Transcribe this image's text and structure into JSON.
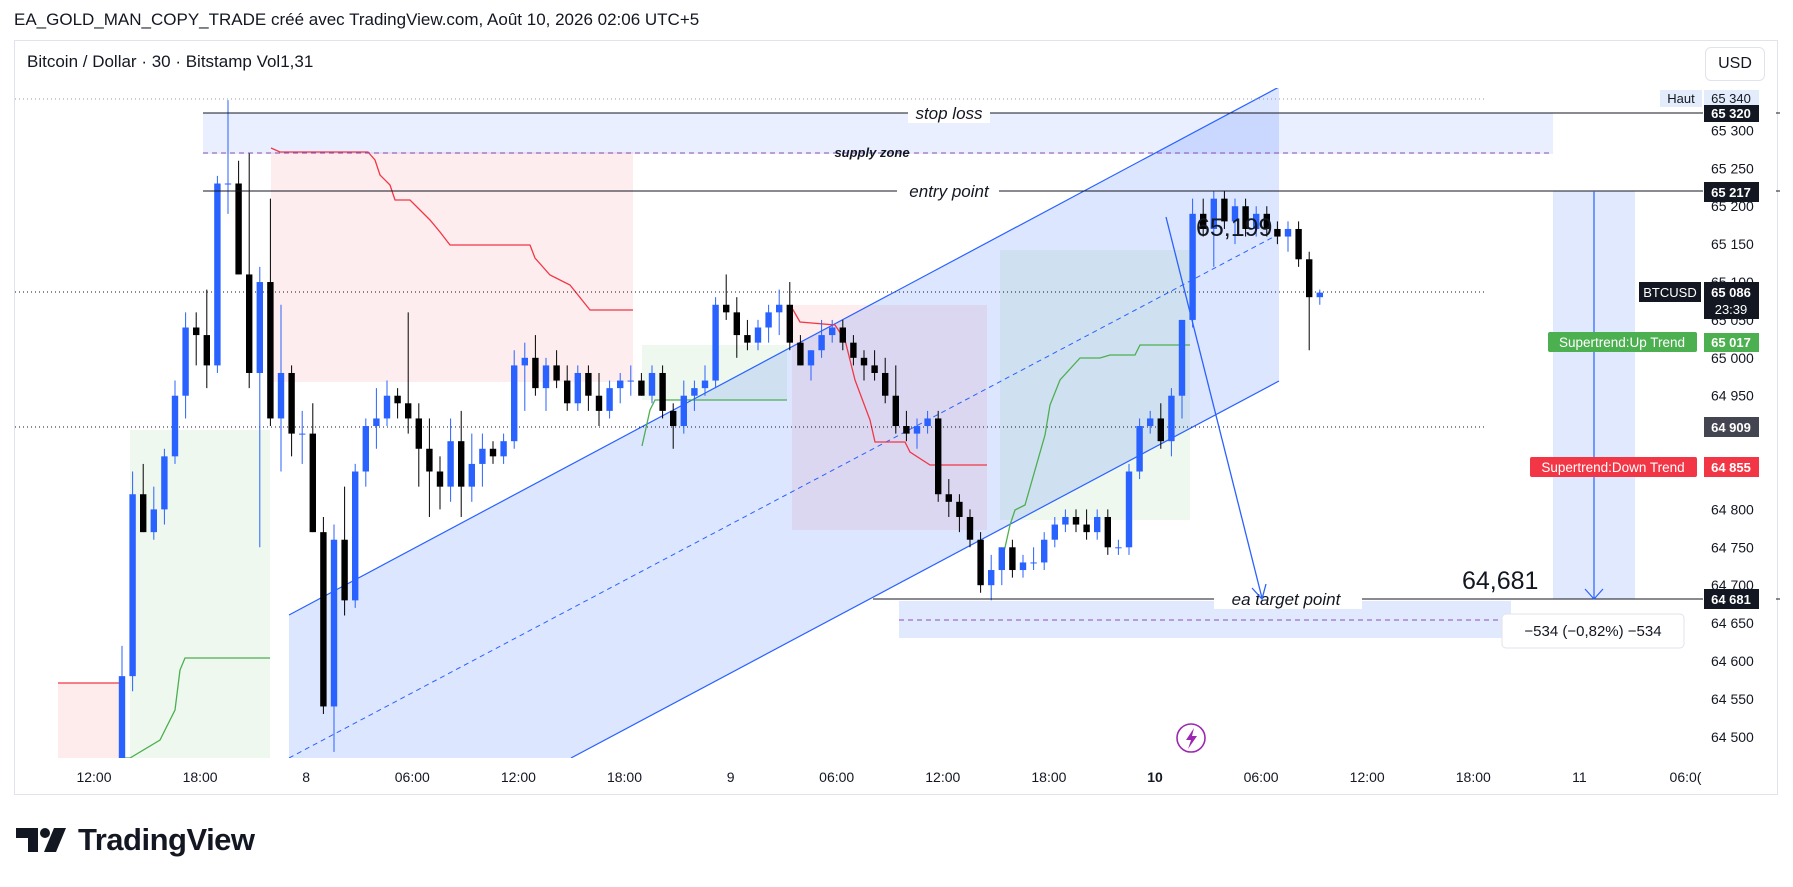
{
  "header": {
    "snapshot_title": "EA_GOLD_MAN_COPY_TRADE créé avec TradingView.com, Août 10, 2026 02:06 UTC+5"
  },
  "chart_header": {
    "symbol_info": "Bitcoin / Dollar · 30 · Bitstamp  Vol1,31",
    "currency_button": "USD"
  },
  "brand": {
    "logo_text": "TradingView",
    "logo_icon": "tradingview-logo-icon"
  },
  "chart_data": {
    "type": "candlestick",
    "timeframe_minutes": 30,
    "x_tick_labels": [
      "12:00",
      "18:00",
      "8",
      "06:00",
      "12:00",
      "18:00",
      "9",
      "06:00",
      "12:00",
      "18:00",
      "10",
      "06:00",
      "12:00",
      "18:00",
      "11",
      "06:0("
    ],
    "y_tick_labels": [
      "65 300",
      "65 250",
      "65 200",
      "65 150",
      "65 100",
      "65 050",
      "65 000",
      "64 950",
      "64 800",
      "64 750",
      "64 700",
      "64 650",
      "64 600",
      "64 550",
      "64 500"
    ],
    "ylim": [
      64472,
      65356
    ],
    "candles": [
      {
        "o": 64470,
        "h": 64620,
        "l": 64430,
        "c": 64580
      },
      {
        "o": 64580,
        "h": 64850,
        "l": 64560,
        "c": 64820
      },
      {
        "o": 64820,
        "h": 64860,
        "l": 64770,
        "c": 64770
      },
      {
        "o": 64770,
        "h": 64830,
        "l": 64760,
        "c": 64800
      },
      {
        "o": 64800,
        "h": 64880,
        "l": 64780,
        "c": 64870
      },
      {
        "o": 64870,
        "h": 64970,
        "l": 64860,
        "c": 64950
      },
      {
        "o": 64950,
        "h": 65060,
        "l": 64920,
        "c": 65040
      },
      {
        "o": 65040,
        "h": 65060,
        "l": 64990,
        "c": 65030
      },
      {
        "o": 65030,
        "h": 65090,
        "l": 64960,
        "c": 64990
      },
      {
        "o": 64990,
        "h": 65240,
        "l": 64980,
        "c": 65230
      },
      {
        "o": 65230,
        "h": 65340,
        "l": 65190,
        "c": 65230
      },
      {
        "o": 65230,
        "h": 65260,
        "l": 65110,
        "c": 65110
      },
      {
        "o": 65110,
        "h": 65270,
        "l": 64960,
        "c": 64980
      },
      {
        "o": 64980,
        "h": 65120,
        "l": 64750,
        "c": 65100
      },
      {
        "o": 65100,
        "h": 65210,
        "l": 64910,
        "c": 64920
      },
      {
        "o": 64920,
        "h": 65070,
        "l": 64850,
        "c": 64980
      },
      {
        "o": 64980,
        "h": 64990,
        "l": 64870,
        "c": 64900
      },
      {
        "o": 64900,
        "h": 64930,
        "l": 64860,
        "c": 64900
      },
      {
        "o": 64900,
        "h": 64940,
        "l": 64770,
        "c": 64770
      },
      {
        "o": 64770,
        "h": 64790,
        "l": 64530,
        "c": 64540
      },
      {
        "o": 64540,
        "h": 64780,
        "l": 64480,
        "c": 64760
      },
      {
        "o": 64760,
        "h": 64830,
        "l": 64660,
        "c": 64680
      },
      {
        "o": 64680,
        "h": 64860,
        "l": 64670,
        "c": 64850
      },
      {
        "o": 64850,
        "h": 64920,
        "l": 64830,
        "c": 64910
      },
      {
        "o": 64910,
        "h": 64960,
        "l": 64880,
        "c": 64920
      },
      {
        "o": 64920,
        "h": 64970,
        "l": 64910,
        "c": 64950
      },
      {
        "o": 64950,
        "h": 64960,
        "l": 64920,
        "c": 64940
      },
      {
        "o": 64940,
        "h": 65060,
        "l": 64900,
        "c": 64920
      },
      {
        "o": 64920,
        "h": 64940,
        "l": 64830,
        "c": 64880
      },
      {
        "o": 64880,
        "h": 64920,
        "l": 64790,
        "c": 64850
      },
      {
        "o": 64850,
        "h": 64870,
        "l": 64800,
        "c": 64830
      },
      {
        "o": 64830,
        "h": 64920,
        "l": 64810,
        "c": 64890
      },
      {
        "o": 64890,
        "h": 64930,
        "l": 64790,
        "c": 64830
      },
      {
        "o": 64830,
        "h": 64900,
        "l": 64810,
        "c": 64860
      },
      {
        "o": 64860,
        "h": 64900,
        "l": 64830,
        "c": 64880
      },
      {
        "o": 64880,
        "h": 64890,
        "l": 64860,
        "c": 64870
      },
      {
        "o": 64870,
        "h": 64900,
        "l": 64860,
        "c": 64890
      },
      {
        "o": 64890,
        "h": 65010,
        "l": 64880,
        "c": 64990
      },
      {
        "o": 64990,
        "h": 65020,
        "l": 64930,
        "c": 65000
      },
      {
        "o": 65000,
        "h": 65030,
        "l": 64950,
        "c": 64960
      },
      {
        "o": 64960,
        "h": 65000,
        "l": 64930,
        "c": 64990
      },
      {
        "o": 64990,
        "h": 65010,
        "l": 64960,
        "c": 64970
      },
      {
        "o": 64970,
        "h": 64990,
        "l": 64930,
        "c": 64940
      },
      {
        "o": 64940,
        "h": 64990,
        "l": 64930,
        "c": 64980
      },
      {
        "o": 64980,
        "h": 64990,
        "l": 64930,
        "c": 64950
      },
      {
        "o": 64950,
        "h": 64980,
        "l": 64910,
        "c": 64930
      },
      {
        "o": 64930,
        "h": 64970,
        "l": 64920,
        "c": 64960
      },
      {
        "o": 64960,
        "h": 64980,
        "l": 64940,
        "c": 64970
      },
      {
        "o": 64970,
        "h": 64990,
        "l": 64950,
        "c": 64970
      },
      {
        "o": 64970,
        "h": 64980,
        "l": 64950,
        "c": 64950
      },
      {
        "o": 64950,
        "h": 64990,
        "l": 64940,
        "c": 64980
      },
      {
        "o": 64980,
        "h": 64990,
        "l": 64920,
        "c": 64930
      },
      {
        "o": 64930,
        "h": 64940,
        "l": 64880,
        "c": 64910
      },
      {
        "o": 64910,
        "h": 64970,
        "l": 64900,
        "c": 64950
      },
      {
        "o": 64950,
        "h": 64970,
        "l": 64930,
        "c": 64960
      },
      {
        "o": 64960,
        "h": 64990,
        "l": 64950,
        "c": 64970
      },
      {
        "o": 64970,
        "h": 65080,
        "l": 64960,
        "c": 65070
      },
      {
        "o": 65070,
        "h": 65110,
        "l": 65050,
        "c": 65060
      },
      {
        "o": 65060,
        "h": 65080,
        "l": 65000,
        "c": 65030
      },
      {
        "o": 65030,
        "h": 65050,
        "l": 65010,
        "c": 65020
      },
      {
        "o": 65020,
        "h": 65050,
        "l": 65010,
        "c": 65040
      },
      {
        "o": 65040,
        "h": 65070,
        "l": 65020,
        "c": 65060
      },
      {
        "o": 65060,
        "h": 65090,
        "l": 65030,
        "c": 65070
      },
      {
        "o": 65070,
        "h": 65100,
        "l": 65010,
        "c": 65020
      },
      {
        "o": 65020,
        "h": 65030,
        "l": 64990,
        "c": 64990
      },
      {
        "o": 64990,
        "h": 65010,
        "l": 64970,
        "c": 65010
      },
      {
        "o": 65010,
        "h": 65050,
        "l": 65000,
        "c": 65030
      },
      {
        "o": 65030,
        "h": 65050,
        "l": 65020,
        "c": 65040
      },
      {
        "o": 65040,
        "h": 65050,
        "l": 65010,
        "c": 65020
      },
      {
        "o": 65020,
        "h": 65030,
        "l": 64990,
        "c": 65000
      },
      {
        "o": 65000,
        "h": 65010,
        "l": 64970,
        "c": 64990
      },
      {
        "o": 64990,
        "h": 65010,
        "l": 64970,
        "c": 64980
      },
      {
        "o": 64980,
        "h": 65000,
        "l": 64940,
        "c": 64950
      },
      {
        "o": 64950,
        "h": 64990,
        "l": 64900,
        "c": 64910
      },
      {
        "o": 64910,
        "h": 64930,
        "l": 64890,
        "c": 64900
      },
      {
        "o": 64900,
        "h": 64920,
        "l": 64880,
        "c": 64910
      },
      {
        "o": 64910,
        "h": 64930,
        "l": 64900,
        "c": 64920
      },
      {
        "o": 64920,
        "h": 64930,
        "l": 64810,
        "c": 64820
      },
      {
        "o": 64820,
        "h": 64840,
        "l": 64790,
        "c": 64810
      },
      {
        "o": 64810,
        "h": 64820,
        "l": 64770,
        "c": 64790
      },
      {
        "o": 64790,
        "h": 64800,
        "l": 64750,
        "c": 64760
      },
      {
        "o": 64760,
        "h": 64770,
        "l": 64690,
        "c": 64700
      },
      {
        "o": 64700,
        "h": 64740,
        "l": 64680,
        "c": 64720
      },
      {
        "o": 64720,
        "h": 64750,
        "l": 64700,
        "c": 64750
      },
      {
        "o": 64750,
        "h": 64760,
        "l": 64710,
        "c": 64720
      },
      {
        "o": 64720,
        "h": 64740,
        "l": 64710,
        "c": 64730
      },
      {
        "o": 64730,
        "h": 64750,
        "l": 64720,
        "c": 64730
      },
      {
        "o": 64730,
        "h": 64770,
        "l": 64720,
        "c": 64760
      },
      {
        "o": 64760,
        "h": 64790,
        "l": 64750,
        "c": 64780
      },
      {
        "o": 64780,
        "h": 64800,
        "l": 64770,
        "c": 64790
      },
      {
        "o": 64790,
        "h": 64800,
        "l": 64770,
        "c": 64780
      },
      {
        "o": 64780,
        "h": 64800,
        "l": 64760,
        "c": 64770
      },
      {
        "o": 64770,
        "h": 64800,
        "l": 64760,
        "c": 64790
      },
      {
        "o": 64790,
        "h": 64800,
        "l": 64740,
        "c": 64750
      },
      {
        "o": 64750,
        "h": 64760,
        "l": 64740,
        "c": 64750
      },
      {
        "o": 64750,
        "h": 64860,
        "l": 64740,
        "c": 64850
      },
      {
        "o": 64850,
        "h": 64920,
        "l": 64840,
        "c": 64910
      },
      {
        "o": 64910,
        "h": 64930,
        "l": 64900,
        "c": 64920
      },
      {
        "o": 64920,
        "h": 64940,
        "l": 64880,
        "c": 64890
      },
      {
        "o": 64890,
        "h": 64960,
        "l": 64870,
        "c": 64950
      },
      {
        "o": 64950,
        "h": 65050,
        "l": 64920,
        "c": 65050
      },
      {
        "o": 65050,
        "h": 65210,
        "l": 65040,
        "c": 65190
      },
      {
        "o": 65190,
        "h": 65210,
        "l": 65160,
        "c": 65170
      },
      {
        "o": 65170,
        "h": 65220,
        "l": 65120,
        "c": 65210
      },
      {
        "o": 65210,
        "h": 65220,
        "l": 65170,
        "c": 65180
      },
      {
        "o": 65180,
        "h": 65210,
        "l": 65150,
        "c": 65200
      },
      {
        "o": 65200,
        "h": 65210,
        "l": 65160,
        "c": 65170
      },
      {
        "o": 65170,
        "h": 65200,
        "l": 65160,
        "c": 65190
      },
      {
        "o": 65190,
        "h": 65200,
        "l": 65160,
        "c": 65170
      },
      {
        "o": 65170,
        "h": 65180,
        "l": 65150,
        "c": 65160
      },
      {
        "o": 65160,
        "h": 65180,
        "l": 65140,
        "c": 65170
      },
      {
        "o": 65170,
        "h": 65180,
        "l": 65120,
        "c": 65130
      },
      {
        "o": 65130,
        "h": 65140,
        "l": 65010,
        "c": 65080
      },
      {
        "o": 65080,
        "h": 65090,
        "l": 65070,
        "c": 65086
      }
    ],
    "supertrend": {
      "up_label": "Supertrend:Up Trend",
      "up_value": "65 017",
      "down_label": "Supertrend:Down Trend",
      "down_value": "64 855"
    },
    "annotations": {
      "stop_loss": "stop loss",
      "supply_zone": "supply zone",
      "entry_point": "entry point",
      "target_point": "ea target point",
      "price_high_note": "65,199",
      "price_target_note": "64,681",
      "measure_label": "−534 (−0,82%) −534",
      "haut_label": "Haut"
    },
    "price_tags": {
      "haut": "65 340",
      "stop_loss": "65 320",
      "entry": "65 217",
      "symbol": "BTCUSD",
      "last": "65 086",
      "countdown": "23:39",
      "mid": "64 909",
      "target": "64 681"
    },
    "colors": {
      "up_candle": "#2962ff",
      "down_candle": "#000000",
      "supertrend_up": "#4caf50",
      "supertrend_down": "#f23645",
      "channel_fill": "#2962ff",
      "tag_dark": "#131722"
    }
  }
}
